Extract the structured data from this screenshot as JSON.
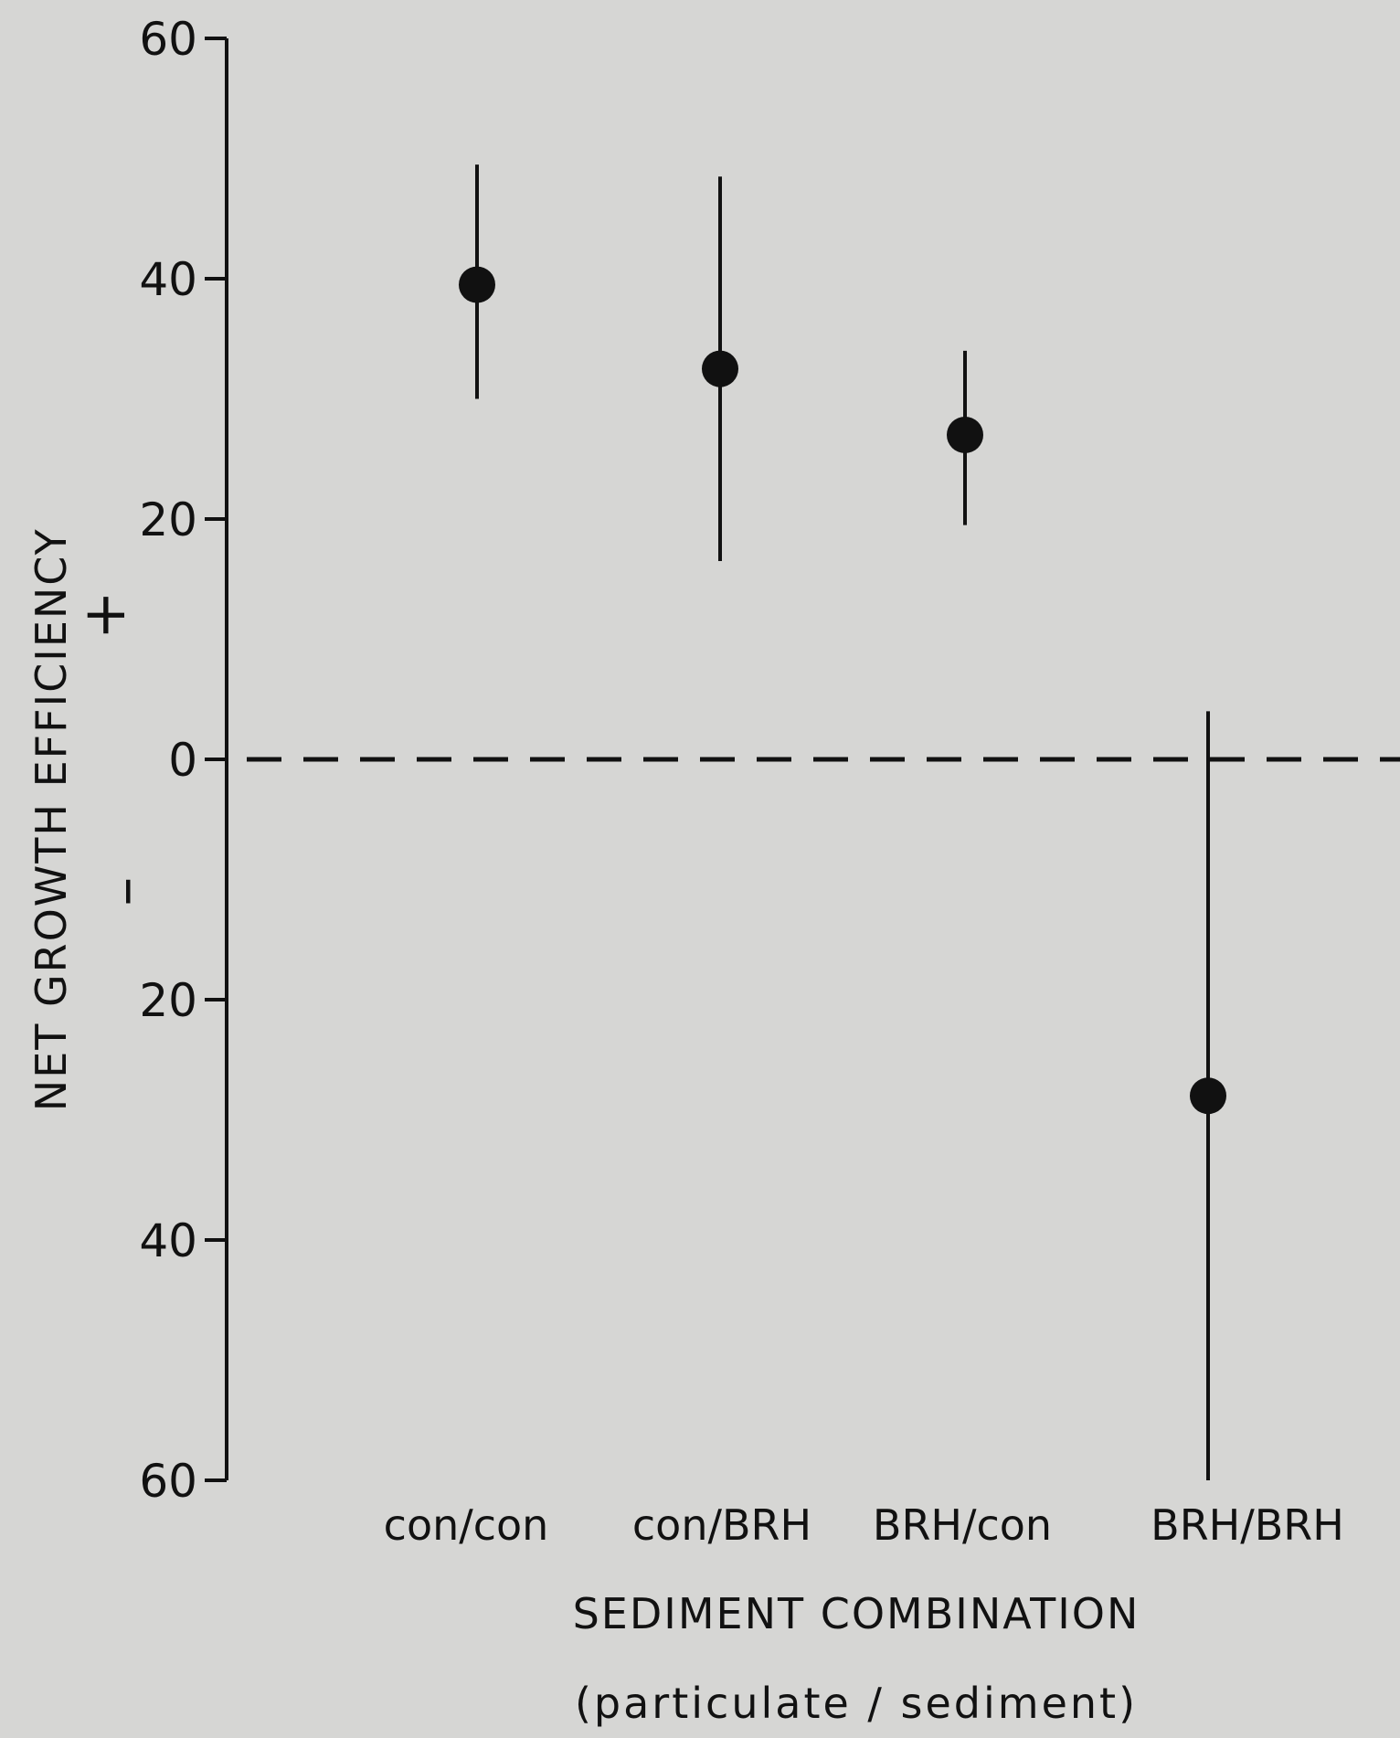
{
  "chart_data": {
    "type": "scatter",
    "ylabel": "NET GROWTH EFFICIENCY",
    "xlabel": "SEDIMENT COMBINATION",
    "xlabel_sub": "(particulate / sediment)",
    "y_tick_values": [
      60,
      40,
      20,
      0,
      -20,
      -40,
      -60
    ],
    "y_tick_labels": [
      "60",
      "40",
      "20",
      "0",
      "20",
      "40",
      "60"
    ],
    "ylim": [
      -60,
      60
    ],
    "sign_labels": {
      "positive": "+",
      "negative": "–"
    },
    "zero_line": "dashed",
    "grid": false,
    "categories": [
      "con/con",
      "con/BRH",
      "BRH/con",
      "BRH/BRH"
    ],
    "series": [
      {
        "values": [
          39.5,
          32.5,
          27.0,
          -28.0
        ],
        "error_low": [
          30.0,
          16.5,
          19.5,
          -60.0
        ],
        "error_high": [
          49.5,
          48.5,
          34.0,
          4.0
        ]
      }
    ],
    "colors": {
      "marker": "#111111",
      "axis": "#111111",
      "background": "#d6d6d4"
    }
  }
}
